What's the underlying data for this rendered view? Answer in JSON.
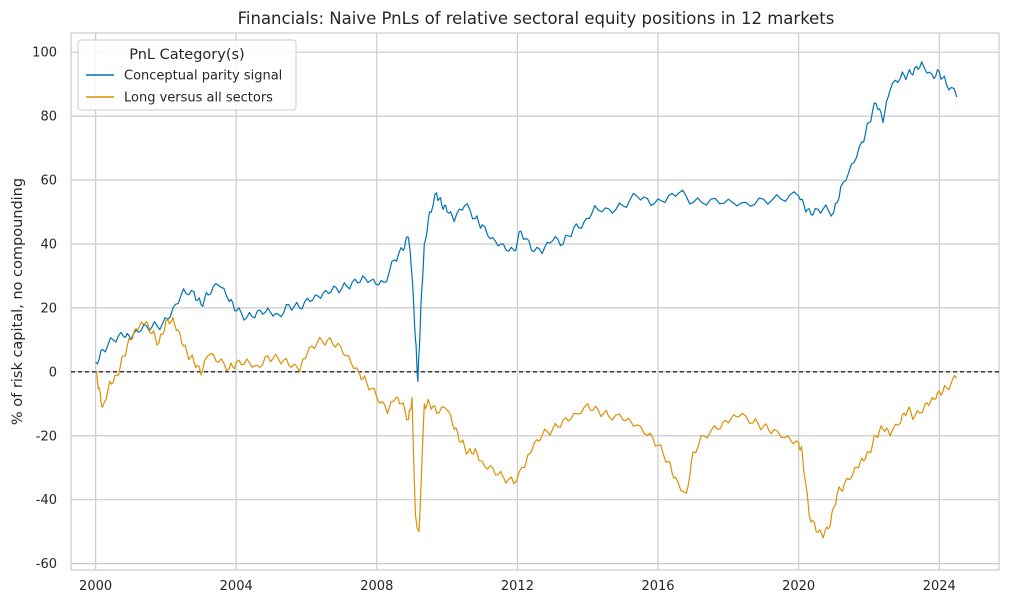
{
  "chart_data": {
    "type": "line",
    "title": "Financials: Naive PnLs of relative sectoral equity positions in 12 markets",
    "xlabel": "",
    "ylabel": "% of risk capital, no compounding",
    "xlim": [
      1999.3,
      2025.7
    ],
    "ylim": [
      -62,
      106
    ],
    "x_ticks": [
      2000,
      2004,
      2008,
      2012,
      2016,
      2020,
      2024
    ],
    "y_ticks": [
      -60,
      -40,
      -20,
      0,
      20,
      40,
      60,
      80,
      100
    ],
    "grid": true,
    "zero_line": true,
    "legend": {
      "title": "PnL Category(s)",
      "placement": "top-left"
    },
    "series": [
      {
        "name": "Conceptual parity signal",
        "color": "#0173B2",
        "x": [
          2000.0,
          2000.2,
          2000.5,
          2000.8,
          2001.0,
          2001.3,
          2001.6,
          2001.9,
          2002.2,
          2002.5,
          2002.8,
          2003.0,
          2003.2,
          2003.5,
          2003.8,
          2004.0,
          2004.3,
          2004.6,
          2004.9,
          2005.2,
          2005.5,
          2005.8,
          2006.1,
          2006.4,
          2006.7,
          2007.0,
          2007.3,
          2007.6,
          2007.9,
          2008.2,
          2008.5,
          2008.75,
          2008.9,
          2009.0,
          2009.1,
          2009.17,
          2009.25,
          2009.35,
          2009.5,
          2009.7,
          2009.85,
          2010.0,
          2010.2,
          2010.5,
          2010.8,
          2011.0,
          2011.3,
          2011.6,
          2011.9,
          2012.1,
          2012.4,
          2012.7,
          2013.0,
          2013.3,
          2013.6,
          2013.9,
          2014.2,
          2014.6,
          2015.0,
          2015.4,
          2015.8,
          2016.2,
          2016.6,
          2017.0,
          2017.5,
          2018.0,
          2018.5,
          2019.0,
          2019.5,
          2020.0,
          2020.2,
          2020.4,
          2020.7,
          2021.0,
          2021.2,
          2021.5,
          2021.8,
          2022.0,
          2022.2,
          2022.4,
          2022.6,
          2022.9,
          2023.1,
          2023.3,
          2023.5,
          2023.8,
          2024.0,
          2024.2,
          2024.5
        ],
        "values": [
          3,
          7,
          10,
          11,
          10,
          13,
          14,
          15,
          20,
          26,
          25,
          21,
          24,
          27,
          22,
          19,
          17,
          19,
          20,
          18,
          21,
          20,
          22,
          23,
          25,
          26,
          28,
          30,
          29,
          28,
          35,
          38,
          42,
          30,
          10,
          -3,
          20,
          40,
          50,
          56,
          52,
          50,
          47,
          52,
          48,
          46,
          42,
          40,
          38,
          44,
          38,
          37,
          41,
          40,
          45,
          47,
          52,
          51,
          52,
          55,
          52,
          53,
          56,
          53,
          54,
          54,
          53,
          54,
          54,
          55,
          50,
          49,
          51,
          50,
          58,
          65,
          72,
          78,
          84,
          78,
          88,
          92,
          93,
          95,
          97,
          93,
          94,
          90,
          86
        ]
      },
      {
        "name": "Long versus all sectors",
        "color": "#DE8F05",
        "x": [
          2000.0,
          2000.1,
          2000.2,
          2000.4,
          2000.6,
          2000.8,
          2001.0,
          2001.2,
          2001.4,
          2001.6,
          2001.8,
          2002.0,
          2002.2,
          2002.4,
          2002.6,
          2002.8,
          2003.0,
          2003.2,
          2003.5,
          2003.8,
          2004.0,
          2004.3,
          2004.6,
          2004.9,
          2005.2,
          2005.5,
          2005.8,
          2006.0,
          2006.3,
          2006.6,
          2006.9,
          2007.2,
          2007.5,
          2007.7,
          2008.0,
          2008.3,
          2008.5,
          2008.7,
          2008.9,
          2009.0,
          2009.1,
          2009.2,
          2009.35,
          2009.5,
          2009.7,
          2010.0,
          2010.2,
          2010.4,
          2010.6,
          2010.8,
          2011.0,
          2011.3,
          2011.6,
          2011.9,
          2012.2,
          2012.4,
          2012.7,
          2013.0,
          2013.3,
          2013.6,
          2014.0,
          2014.3,
          2014.6,
          2015.0,
          2015.3,
          2015.7,
          2016.0,
          2016.3,
          2016.5,
          2016.8,
          2017.0,
          2017.3,
          2017.7,
          2018.0,
          2018.3,
          2018.7,
          2019.0,
          2019.3,
          2019.7,
          2020.0,
          2020.1,
          2020.3,
          2020.5,
          2020.7,
          2020.9,
          2021.1,
          2021.3,
          2021.6,
          2021.8,
          2022.0,
          2022.2,
          2022.4,
          2022.6,
          2022.9,
          2023.1,
          2023.3,
          2023.6,
          2023.8,
          2024.0,
          2024.2,
          2024.5
        ],
        "values": [
          0,
          -5,
          -11,
          -3,
          -1,
          5,
          10,
          13,
          15,
          12,
          9,
          16,
          17,
          12,
          6,
          3,
          -1,
          5,
          3,
          1,
          3,
          4,
          2,
          5,
          4,
          2,
          0,
          5,
          9,
          10,
          9,
          5,
          0,
          -3,
          -8,
          -13,
          -9,
          -10,
          -15,
          -8,
          -45,
          -50,
          -10,
          -10,
          -13,
          -12,
          -18,
          -22,
          -25,
          -24,
          -28,
          -30,
          -33,
          -35,
          -30,
          -25,
          -20,
          -18,
          -15,
          -13,
          -10,
          -12,
          -14,
          -15,
          -17,
          -20,
          -23,
          -28,
          -33,
          -38,
          -25,
          -20,
          -18,
          -16,
          -14,
          -16,
          -17,
          -18,
          -20,
          -22,
          -25,
          -45,
          -50,
          -52,
          -48,
          -38,
          -35,
          -30,
          -27,
          -25,
          -20,
          -18,
          -20,
          -16,
          -12,
          -14,
          -10,
          -8,
          -6,
          -5,
          -2
        ]
      }
    ]
  }
}
